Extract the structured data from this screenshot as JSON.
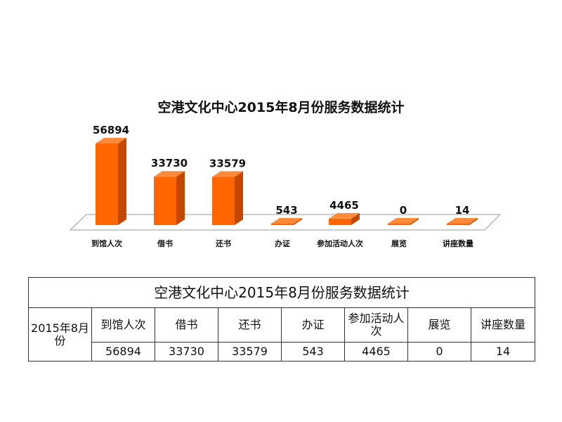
{
  "chart_data": {
    "type": "bar",
    "title": "空港文化中心2015年8月份服务数据统计",
    "categories": [
      "到馆人次",
      "借书",
      "还书",
      "办证",
      "参加活动人次",
      "展览",
      "讲座数量"
    ],
    "values": [
      56894,
      33730,
      33579,
      543,
      4465,
      0,
      14
    ],
    "value_labels": [
      "56894",
      "33730",
      "33579",
      "543",
      "4465",
      "0",
      "14"
    ],
    "ylim": [
      0,
      60000
    ],
    "bar_color": "#ff6600",
    "bar_side_color": "#c44800",
    "bar_top_color": "#ff8a3a",
    "grid": false,
    "legend": "none"
  },
  "table": {
    "title": "空港文化中心2015年8月份服务数据统计",
    "row_header": "2015年8月份",
    "headers": [
      "到馆人次",
      "借书",
      "还书",
      "办证",
      "参加活动人次",
      "展览",
      "讲座数量"
    ],
    "values": [
      "56894",
      "33730",
      "33579",
      "543",
      "4465",
      "0",
      "14"
    ]
  }
}
